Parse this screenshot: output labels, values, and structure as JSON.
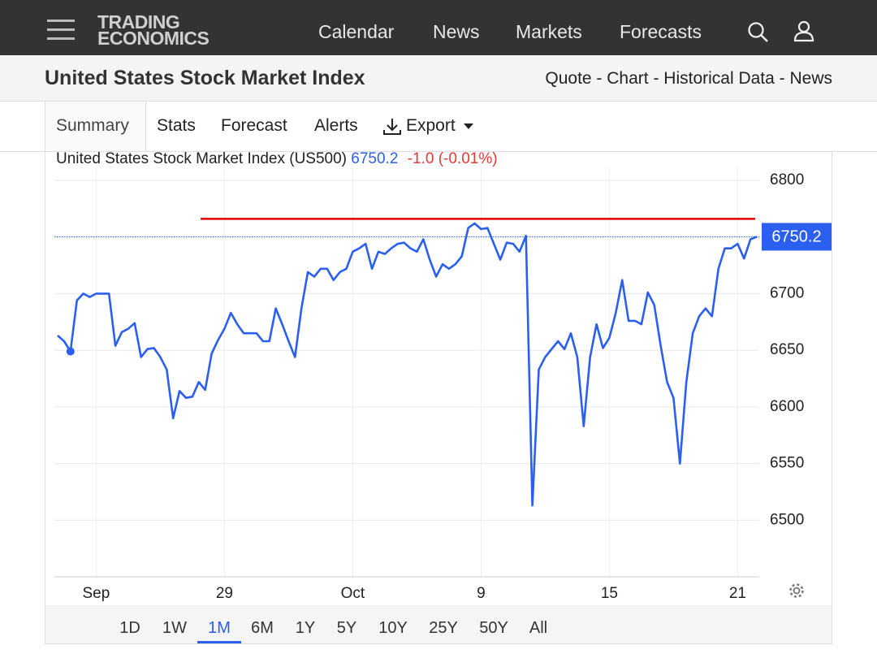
{
  "header": {
    "logo": [
      "TRADING",
      "ECONOMICS"
    ],
    "nav": [
      "Calendar",
      "News",
      "Markets",
      "Forecasts"
    ]
  },
  "page": {
    "title": "United States Stock Market Index",
    "links": "Quote - Chart - Historical Data - News"
  },
  "tabs": [
    "Summary",
    "Stats",
    "Forecast",
    "Alerts",
    "Export"
  ],
  "chart_data": {
    "type": "line",
    "title": "United States Stock Market Index (US500)",
    "change_label": "-1.0 (-0.01%)",
    "categories": [
      null,
      null,
      null,
      null,
      null,
      null,
      "Sep",
      null,
      null,
      null,
      null,
      null,
      null,
      null,
      null,
      null,
      null,
      null,
      null,
      null,
      null,
      null,
      null,
      null,
      null,
      null,
      "29",
      null,
      null,
      null,
      null,
      null,
      null,
      null,
      null,
      null,
      null,
      null,
      null,
      null,
      null,
      null,
      null,
      null,
      null,
      null,
      "Oct",
      null,
      null,
      null,
      null,
      null,
      null,
      null,
      null,
      null,
      null,
      null,
      null,
      null,
      null,
      null,
      null,
      null,
      null,
      null,
      "9",
      null,
      null,
      null,
      null,
      null,
      null,
      null,
      null,
      null,
      null,
      null,
      null,
      null,
      null,
      null,
      null,
      null,
      null,
      null,
      "15",
      null,
      null,
      null,
      null,
      null,
      null,
      null,
      null,
      null,
      null,
      null,
      null,
      null,
      null,
      null,
      null,
      null,
      null,
      null,
      "21",
      null,
      null,
      null
    ],
    "values": [
      6663,
      6658,
      6649,
      6694,
      6700,
      6697,
      6700,
      6700,
      6700,
      6654,
      6666,
      6669,
      6674,
      6644,
      6651,
      6652,
      6644,
      6633,
      6590,
      6614,
      6608,
      6609,
      6622,
      6615,
      6647,
      6659,
      6669,
      6683,
      6673,
      6665,
      6665,
      6665,
      6658,
      6658,
      6687,
      6673,
      6658,
      6644,
      6687,
      6719,
      6715,
      6722,
      6722,
      6712,
      6719,
      6722,
      6737,
      6740,
      6744,
      6722,
      6737,
      6735,
      6740,
      6744,
      6745,
      6740,
      6737,
      6748,
      6730,
      6715,
      6726,
      6722,
      6726,
      6733,
      6758,
      6762,
      6757,
      6758,
      6744,
      6730,
      6745,
      6744,
      6737,
      6751,
      6513,
      6633,
      6644,
      6651,
      6658,
      6651,
      6665,
      6644,
      6583,
      6644,
      6673,
      6652,
      6661,
      6683,
      6712,
      6676,
      6676,
      6673,
      6701,
      6690,
      6654,
      6622,
      6608,
      6550,
      6622,
      6665,
      6680,
      6687,
      6680,
      6722,
      6740,
      6740,
      6744,
      6731,
      6748,
      6750.2
    ],
    "color": "#2b5ff0",
    "change_color": "#e53935",
    "ylim": [
      6450,
      6800
    ],
    "yticks": [
      6500,
      6550,
      6600,
      6650,
      6700,
      6750,
      6800
    ],
    "grid": true,
    "reference_line": {
      "value": 6766,
      "color": "#e00000"
    },
    "ranges": [
      "1D",
      "1W",
      "1M",
      "6M",
      "1Y",
      "5Y",
      "10Y",
      "25Y",
      "50Y",
      "All"
    ],
    "selected_range": 2
  }
}
